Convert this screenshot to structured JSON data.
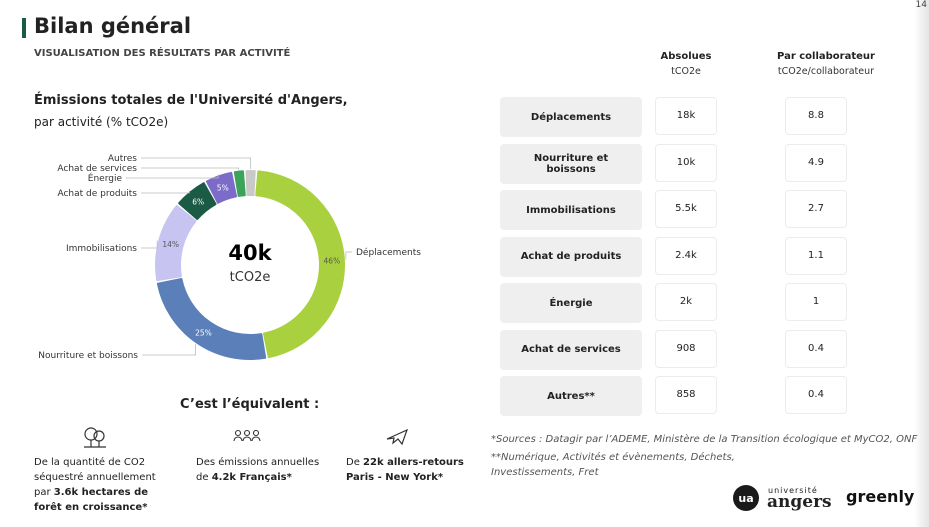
{
  "page_number": "14",
  "header": {
    "title": "Bilan général",
    "subtitle": "VISUALISATION DES RÉSULTATS PAR ACTIVITÉ"
  },
  "chart_data": {
    "type": "pie",
    "title": "Émissions totales de l'Université d'Angers,",
    "subtitle": "par activité (% tCO2e)",
    "total_label": "40k",
    "total_unit": "tCO2e",
    "categories": [
      "Déplacements",
      "Nourriture et boissons",
      "Immobilisations",
      "Achat de produits",
      "Énergie",
      "Achat de services",
      "Autres"
    ],
    "values": [
      46,
      25,
      14,
      6,
      5,
      2,
      2
    ],
    "value_labels": [
      "46%",
      "25%",
      "14%",
      "6%",
      "5%",
      null,
      null
    ],
    "colors": [
      "#a9d13f",
      "#5b7fb9",
      "#c7c4f1",
      "#1b5a44",
      "#7c6bc9",
      "#3ba35a",
      "#c9c9c9"
    ]
  },
  "table": {
    "columns": [
      {
        "title": "Absolues",
        "unit": "tCO2e"
      },
      {
        "title": "Par collaborateur",
        "unit": "tCO2e/collaborateur"
      }
    ],
    "rows": [
      [
        "Déplacements",
        "18k",
        "8.8"
      ],
      [
        "Nourriture et boissons",
        "10k",
        "4.9"
      ],
      [
        "Immobilisations",
        "5.5k",
        "2.7"
      ],
      [
        "Achat de produits",
        "2.4k",
        "1.1"
      ],
      [
        "Énergie",
        "2k",
        "1"
      ],
      [
        "Achat de services",
        "908",
        "0.4"
      ],
      [
        "Autres**",
        "858",
        "0.4"
      ]
    ]
  },
  "equivalent": {
    "title": "C’est l’équivalent :",
    "items": [
      [
        {
          "text": "De la quantité de CO2 séquestré annuellement par ",
          "bold": false
        },
        {
          "text": "3.6k hectares de forêt en croissance*",
          "bold": true
        }
      ],
      [
        {
          "text": "Des émissions annuelles de ",
          "bold": false
        },
        {
          "text": "4.2k Français*",
          "bold": true
        }
      ],
      [
        {
          "text": "De ",
          "bold": false
        },
        {
          "text": "22k allers-retours Paris - New York*",
          "bold": true
        }
      ]
    ]
  },
  "footnotes": [
    "*Sources : Datagir par l’ADEME, Ministère de la Transition écologique et MyCO2, ONF",
    "**Numérique, Activités et évènements, Déchets, Investissements, Fret"
  ],
  "logos": {
    "university_small": "université",
    "university": "angers",
    "greenly": "greenly"
  }
}
